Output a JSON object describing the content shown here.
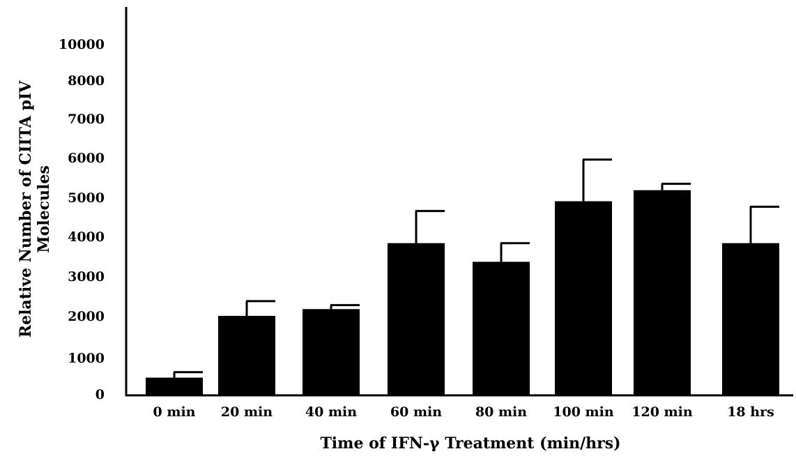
{
  "chart_data": {
    "type": "bar",
    "title": "",
    "xlabel": "Time of IFN-γ Treatment (min/hrs)",
    "ylabel_lines": [
      "Relative Number of CIITA pIV",
      "Molecules"
    ],
    "y_ticks": [
      {
        "value": 0,
        "label": "0"
      },
      {
        "value": 1000,
        "label": "1000"
      },
      {
        "value": 2000,
        "label": "2000"
      },
      {
        "value": 3000,
        "label": "3000"
      },
      {
        "value": 4000,
        "label": "4000"
      },
      {
        "value": 5000,
        "label": "5000"
      },
      {
        "value": 6000,
        "label": "6000"
      },
      {
        "value": 7000,
        "label": "7000"
      },
      {
        "value": 8000,
        "label": "8000"
      },
      {
        "value": 10000,
        "label": "10000"
      }
    ],
    "categories": [
      "0 min",
      "20 min",
      "40 min",
      "60 min",
      "80 min",
      "100 min",
      "120 min",
      "18 hrs"
    ],
    "values": [
      450,
      2000,
      2170,
      3830,
      3360,
      4900,
      5180,
      3830
    ],
    "error_upper": [
      600,
      2370,
      2270,
      4650,
      3830,
      5950,
      5340,
      4760
    ],
    "bar_color": "#000000",
    "grid": false,
    "legend": "none"
  }
}
